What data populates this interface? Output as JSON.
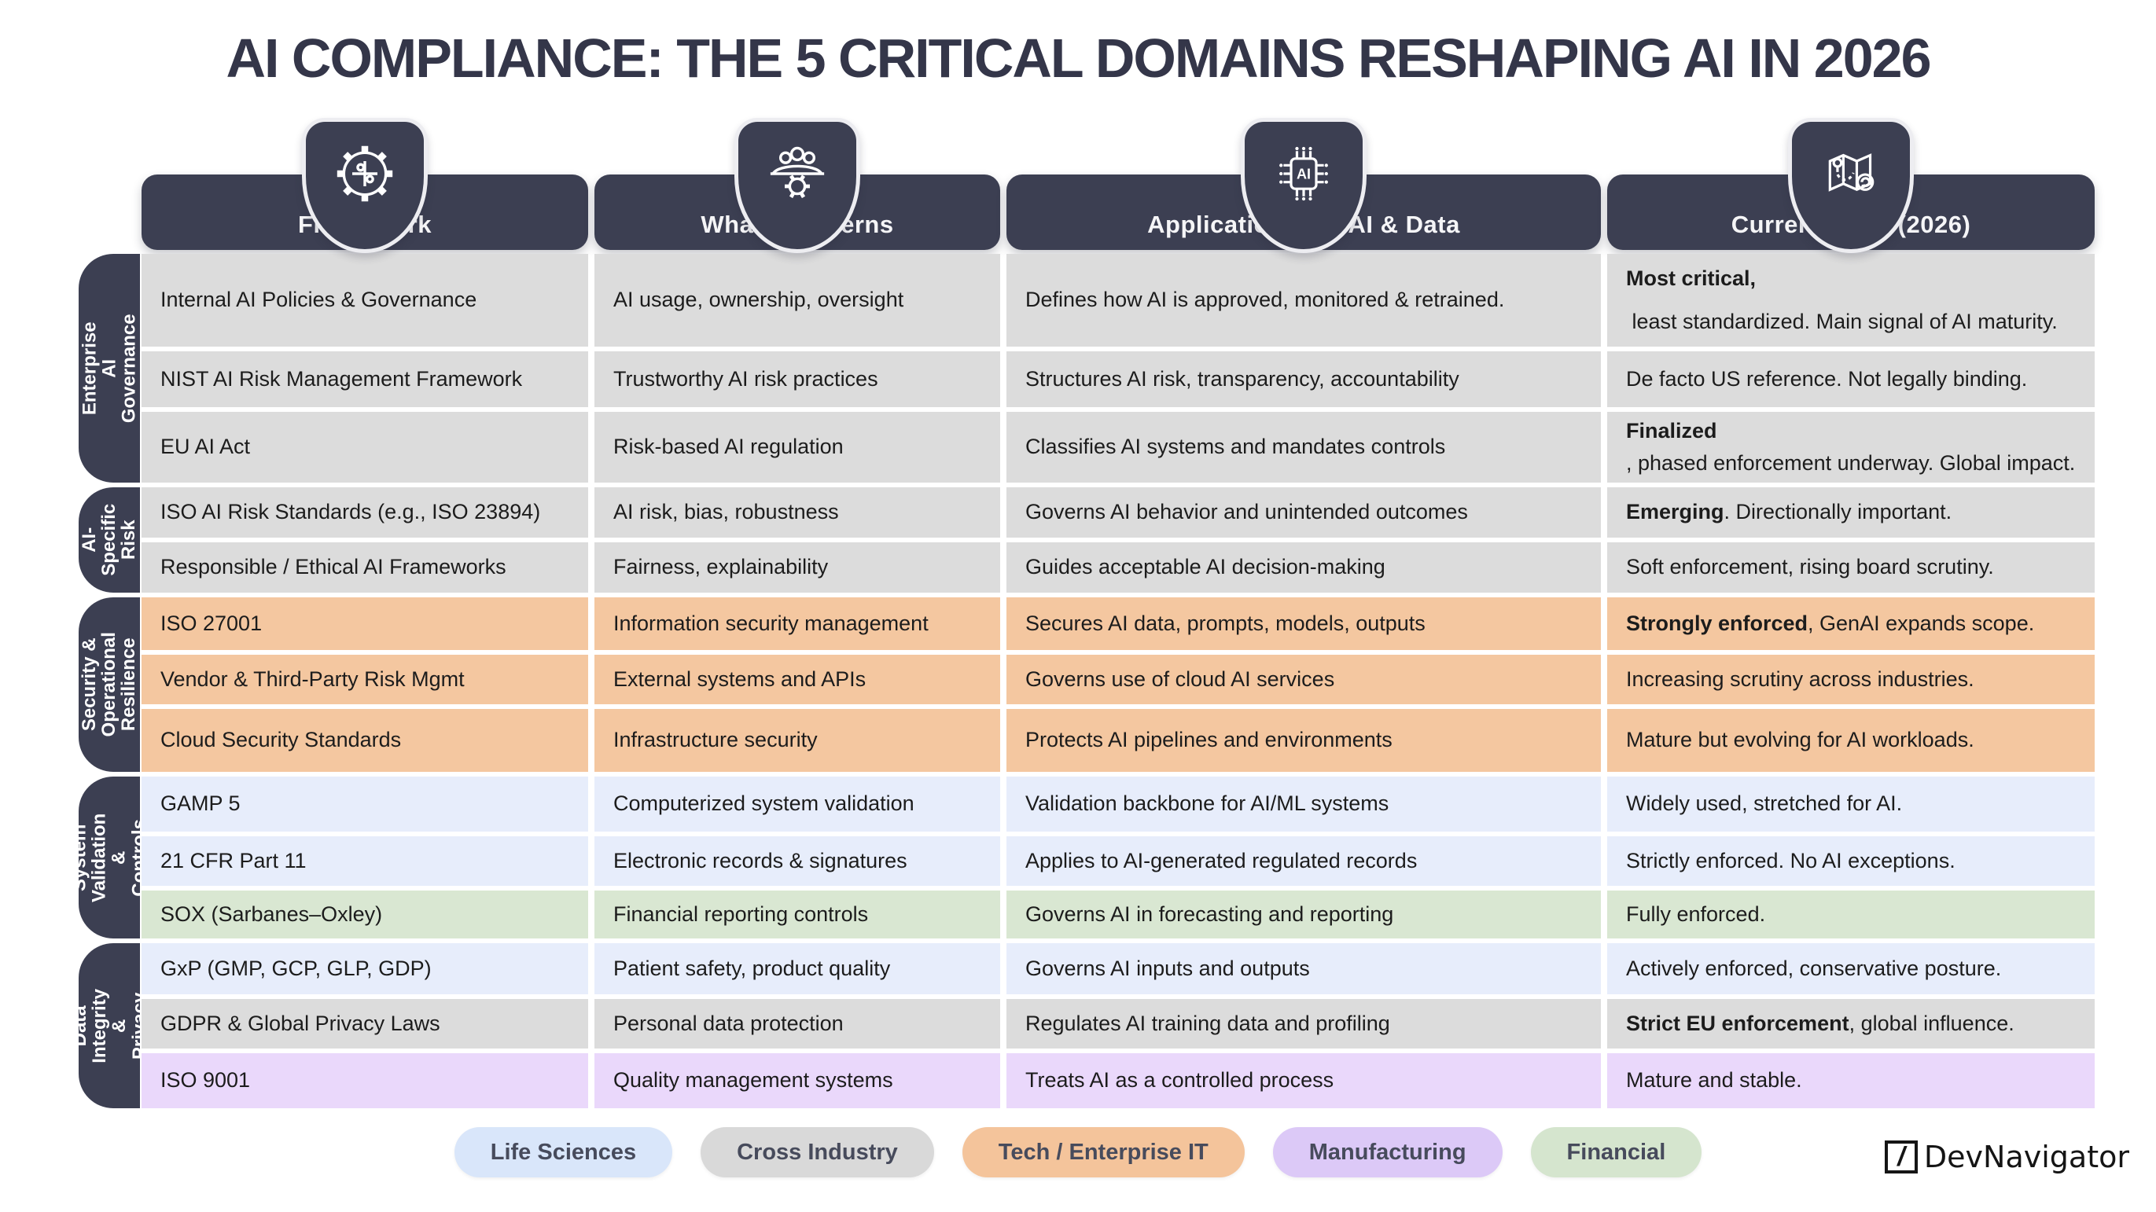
{
  "chart_data": {
    "type": "table",
    "title": "AI COMPLIANCE: THE 5 CRITICAL DOMAINS RESHAPING AI IN 2026",
    "columns": [
      {
        "label": "Framework",
        "icon": "gear-puzzle-icon"
      },
      {
        "label": "What it Governs",
        "icon": "team-gear-icon"
      },
      {
        "label": "Application with AI & Data",
        "icon": "ai-chip-icon"
      },
      {
        "label": "Current State (2026)",
        "icon": "map-route-icon"
      }
    ],
    "groups": [
      {
        "label": "Enterprise AI\nGovernance",
        "rows": 3
      },
      {
        "label": "AI-Specific\nRisk",
        "rows": 2
      },
      {
        "label": "Security &\nOperational\nResilience",
        "rows": 3
      },
      {
        "label": "System Validation\n& Controls",
        "rows": 3
      },
      {
        "label": "Data Integrity &\nPrivacy",
        "rows": 3
      }
    ],
    "rows": [
      {
        "group": "Enterprise AI Governance",
        "category": "cross-industry",
        "framework": "Internal AI Policies & Governance",
        "governs": "AI usage, ownership, oversight",
        "application": "Defines how AI is approved, monitored & retrained.",
        "state": [
          {
            "text": "Most critical,",
            "bold": true
          },
          {
            "text": " least standardized. Main signal of AI maturity.",
            "bold": false
          }
        ]
      },
      {
        "group": "Enterprise AI Governance",
        "category": "cross-industry",
        "framework": "NIST AI Risk Management Framework",
        "governs": "Trustworthy AI risk practices",
        "application": "Structures AI risk, transparency, accountability",
        "state": [
          {
            "text": "De facto US reference. Not legally binding.",
            "bold": false
          }
        ]
      },
      {
        "group": "Enterprise AI Governance",
        "category": "cross-industry",
        "framework": "EU AI Act",
        "governs": "Risk-based AI regulation",
        "application": "Classifies AI systems and mandates controls",
        "state": [
          {
            "text": "Finalized",
            "bold": true
          },
          {
            "text": ", phased enforcement underway. Global impact.",
            "bold": false
          }
        ]
      },
      {
        "group": "AI-Specific Risk",
        "category": "cross-industry",
        "framework": "ISO AI Risk Standards (e.g., ISO 23894)",
        "governs": "AI risk, bias, robustness",
        "application": "Governs AI behavior and unintended outcomes",
        "state": [
          {
            "text": "Emerging",
            "bold": true
          },
          {
            "text": ". Directionally important.",
            "bold": false
          }
        ]
      },
      {
        "group": "AI-Specific Risk",
        "category": "cross-industry",
        "framework": "Responsible / Ethical AI Frameworks",
        "governs": "Fairness, explainability",
        "application": "Guides acceptable AI decision-making",
        "state": [
          {
            "text": "Soft enforcement, rising board scrutiny.",
            "bold": false
          }
        ]
      },
      {
        "group": "Security & Operational Resilience",
        "category": "tech-enterprise-it",
        "framework": "ISO 27001",
        "governs": "Information security management",
        "application": "Secures AI data, prompts, models, outputs",
        "state": [
          {
            "text": "Strongly enforced",
            "bold": true
          },
          {
            "text": ", GenAI expands scope.",
            "bold": false
          }
        ]
      },
      {
        "group": "Security & Operational Resilience",
        "category": "tech-enterprise-it",
        "framework": "Vendor & Third-Party Risk Mgmt",
        "governs": "External systems and APIs",
        "application": "Governs use of cloud AI services",
        "state": [
          {
            "text": "Increasing scrutiny across industries.",
            "bold": false
          }
        ]
      },
      {
        "group": "Security & Operational Resilience",
        "category": "tech-enterprise-it",
        "framework": "Cloud Security Standards",
        "governs": "Infrastructure security",
        "application": "Protects AI pipelines and environments",
        "state": [
          {
            "text": "Mature but evolving for AI workloads.",
            "bold": false
          }
        ]
      },
      {
        "group": "System Validation & Controls",
        "category": "life-sciences",
        "framework": "GAMP 5",
        "governs": "Computerized system validation",
        "application": "Validation backbone for AI/ML systems",
        "state": [
          {
            "text": "Widely used, stretched for AI.",
            "bold": false
          }
        ]
      },
      {
        "group": "System Validation & Controls",
        "category": "life-sciences",
        "framework": "21 CFR Part 11",
        "governs": "Electronic records & signatures",
        "application": "Applies to AI-generated regulated records",
        "state": [
          {
            "text": "Strictly enforced. No AI exceptions.",
            "bold": false
          }
        ]
      },
      {
        "group": "System Validation & Controls",
        "category": "financial",
        "framework": "SOX (Sarbanes–Oxley)",
        "governs": "Financial reporting controls",
        "application": "Governs AI in forecasting and reporting",
        "state": [
          {
            "text": "Fully enforced.",
            "bold": false
          }
        ]
      },
      {
        "group": "Data Integrity & Privacy",
        "category": "life-sciences",
        "framework": "GxP (GMP, GCP, GLP, GDP)",
        "governs": "Patient safety, product quality",
        "application": "Governs AI inputs and outputs",
        "state": [
          {
            "text": "Actively enforced, conservative posture.",
            "bold": false
          }
        ]
      },
      {
        "group": "Data Integrity & Privacy",
        "category": "cross-industry",
        "framework": "GDPR & Global Privacy Laws",
        "governs": "Personal data protection",
        "application": "Regulates AI training data and profiling",
        "state": [
          {
            "text": "Strict EU enforcement",
            "bold": true
          },
          {
            "text": ", global influence.",
            "bold": false
          }
        ]
      },
      {
        "group": "Data Integrity & Privacy",
        "category": "manufacturing",
        "framework": "ISO 9001",
        "governs": "Quality management systems",
        "application": "Treats AI as a controlled process",
        "state": [
          {
            "text": "Mature and stable.",
            "bold": false
          }
        ]
      }
    ],
    "category_colors": {
      "cross-industry": "#dcdcdc",
      "tech-enterprise-it": "#f4c7a0",
      "life-sciences": "#e7edfb",
      "financial": "#d9e7d2",
      "manufacturing": "#ead8fb"
    },
    "legend": [
      {
        "label": "Life Sciences",
        "category": "life-sciences",
        "color": "#d9e6fa"
      },
      {
        "label": "Cross Industry",
        "category": "cross-industry",
        "color": "#d9d9d9"
      },
      {
        "label": "Tech / Enterprise IT",
        "category": "tech-enterprise-it",
        "color": "#f4c49b"
      },
      {
        "label": "Manufacturing",
        "category": "manufacturing",
        "color": "#dcc9f7"
      },
      {
        "label": "Financial",
        "category": "financial",
        "color": "#d5e5ce"
      }
    ],
    "legend_position": "bottom"
  },
  "logo": {
    "glyph": "/",
    "text": "DevNavigator"
  },
  "colors": {
    "header_bg": "#3c3f52",
    "title": "#343649",
    "canvas": "#ffffff"
  }
}
